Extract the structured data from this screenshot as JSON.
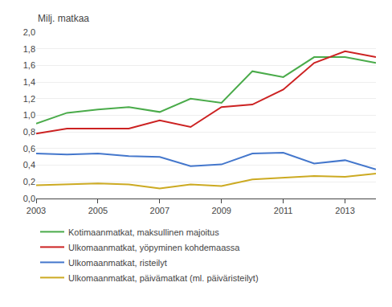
{
  "chart_data": {
    "type": "line",
    "ylabel": "Milj. matkaa",
    "x": [
      2003,
      2004,
      2005,
      2006,
      2007,
      2008,
      2009,
      2010,
      2011,
      2012,
      2013,
      2014
    ],
    "series": [
      {
        "name": "Kotimaanmatkat, maksullinen majoitus",
        "color": "#4aab4a",
        "values": [
          0.9,
          1.03,
          1.07,
          1.1,
          1.04,
          1.2,
          1.15,
          1.53,
          1.46,
          1.7,
          1.7,
          1.63
        ]
      },
      {
        "name": "Ulkomaanmatkat, yöpyminen kohdemaassa",
        "color": "#cc2222",
        "values": [
          0.78,
          0.84,
          0.84,
          0.84,
          0.94,
          0.86,
          1.1,
          1.13,
          1.31,
          1.63,
          1.77,
          1.7
        ]
      },
      {
        "name": "Ulkomaanmatkat, risteilyt",
        "color": "#4477cc",
        "values": [
          0.54,
          0.53,
          0.54,
          0.51,
          0.5,
          0.39,
          0.41,
          0.54,
          0.55,
          0.42,
          0.46,
          0.35
        ]
      },
      {
        "name": "Ulkomaanmatkat, päivämatkat (ml. päiväristeilyt)",
        "color": "#ccaa22",
        "values": [
          0.16,
          0.17,
          0.18,
          0.17,
          0.12,
          0.17,
          0.15,
          0.23,
          0.25,
          0.27,
          0.26,
          0.3
        ]
      }
    ],
    "xlim": [
      2003,
      2014
    ],
    "xticks": [
      2003,
      2005,
      2007,
      2009,
      2011,
      2013
    ],
    "ylim": [
      0.0,
      2.0
    ],
    "yticks": [
      {
        "value": 0.0,
        "label": "0,0"
      },
      {
        "value": 0.2,
        "label": "0,2"
      },
      {
        "value": 0.4,
        "label": "0,4"
      },
      {
        "value": 0.6,
        "label": "0,6"
      },
      {
        "value": 0.8,
        "label": "0,8"
      },
      {
        "value": 1.0,
        "label": "1,0"
      },
      {
        "value": 1.2,
        "label": "1,2"
      },
      {
        "value": 1.4,
        "label": "1,4"
      },
      {
        "value": 1.6,
        "label": "1,6"
      },
      {
        "value": 1.8,
        "label": "1,8"
      },
      {
        "value": 2.0,
        "label": "2,0"
      }
    ],
    "grid": "y",
    "legend": "bottom"
  }
}
